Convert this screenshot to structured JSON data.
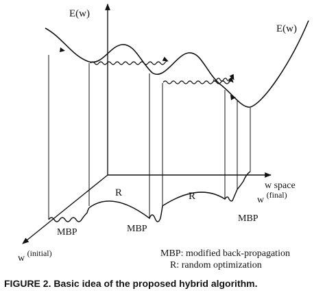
{
  "figure": {
    "axes": {
      "energy_label": "E(w)",
      "w_space_label": "w space",
      "w_initial_base": "w",
      "w_initial_sup": "(initial)",
      "w_final_base": "w",
      "w_final_sup": "(final)"
    },
    "curve_label": "E(w)",
    "segment_labels": {
      "random": [
        "R",
        "R"
      ],
      "mbp": [
        "MBP",
        "MBP",
        "MBP"
      ]
    },
    "legend": {
      "mbp_line": "MBP: modified back-propagation",
      "r_line": "R: random optimization"
    },
    "caption": "FIGURE 2. Basic idea of the proposed hybrid algorithm."
  }
}
